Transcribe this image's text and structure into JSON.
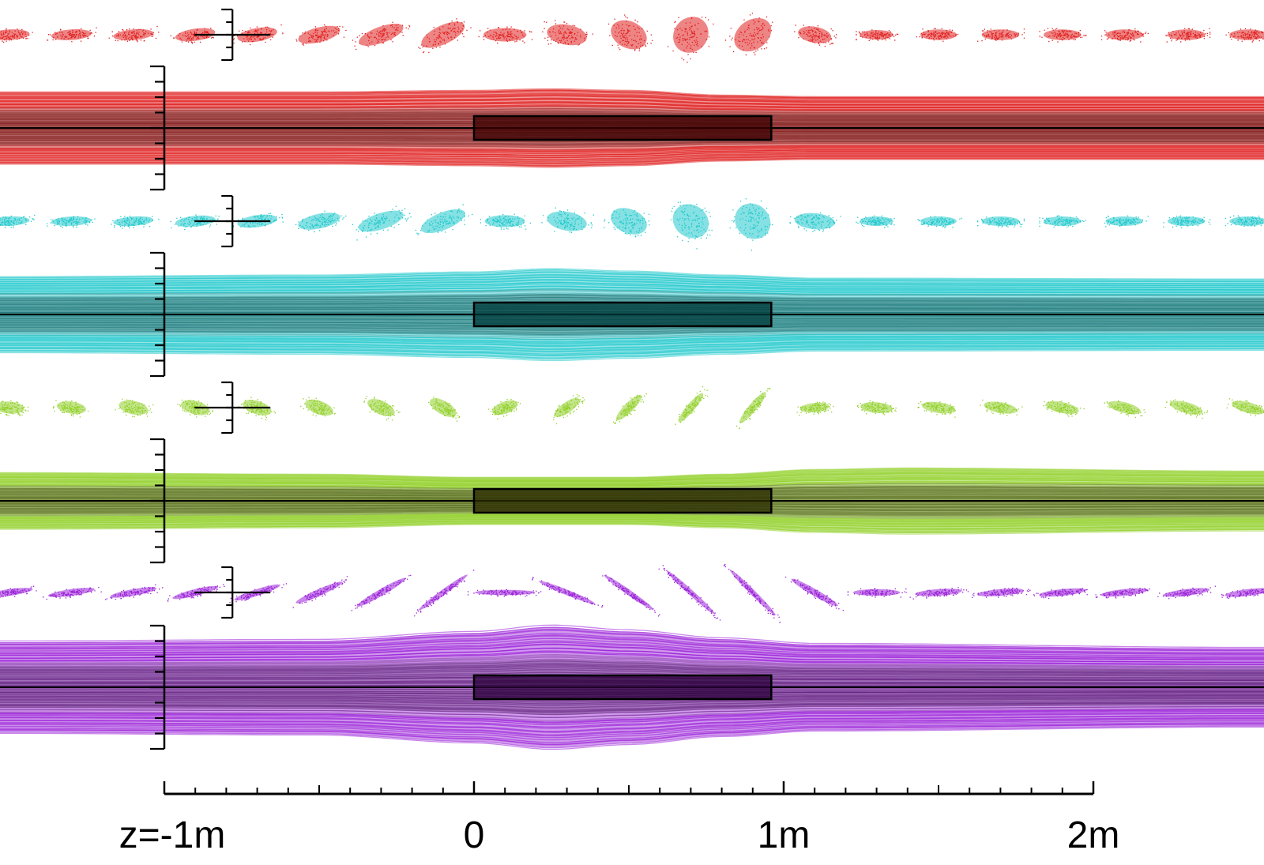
{
  "axis": {
    "tick_labels": [
      {
        "value": -1,
        "text": "z=-1m"
      },
      {
        "value": 0,
        "text": "0"
      },
      {
        "value": 1,
        "text": "1m"
      },
      {
        "value": 2,
        "text": "2m"
      }
    ],
    "range_m": [
      -1,
      2
    ],
    "minor_step_m": 0.1
  },
  "magnet": {
    "start_m": 0,
    "end_m": 0.96
  },
  "ellipse_positions_m": [
    -1.5,
    -1.3,
    -1.1,
    -0.9,
    -0.7,
    -0.5,
    -0.3,
    -0.1,
    0.1,
    0.3,
    0.5,
    0.7,
    0.9,
    1.1,
    1.3,
    1.5,
    1.7,
    1.9,
    2.1,
    2.3,
    2.5
  ],
  "rows": [
    {
      "name": "red",
      "color": "#e02020",
      "dark_color": "#3a0000",
      "ellipses": [
        {
          "rx": 30,
          "ry": 8,
          "angle": -3
        },
        {
          "rx": 30,
          "ry": 8,
          "angle": -4
        },
        {
          "rx": 30,
          "ry": 8,
          "angle": -5
        },
        {
          "rx": 30,
          "ry": 9,
          "angle": -8
        },
        {
          "rx": 30,
          "ry": 10,
          "angle": -10
        },
        {
          "rx": 32,
          "ry": 11,
          "angle": -14
        },
        {
          "rx": 35,
          "ry": 12,
          "angle": -20
        },
        {
          "rx": 35,
          "ry": 14,
          "angle": -25
        },
        {
          "rx": 32,
          "ry": 10,
          "angle": 0
        },
        {
          "rx": 30,
          "ry": 15,
          "angle": 10
        },
        {
          "rx": 28,
          "ry": 20,
          "angle": 25
        },
        {
          "rx": 25,
          "ry": 28,
          "angle": 40
        },
        {
          "rx": 22,
          "ry": 30,
          "angle": 55
        },
        {
          "rx": 25,
          "ry": 12,
          "angle": 10
        },
        {
          "rx": 25,
          "ry": 7,
          "angle": 0
        },
        {
          "rx": 27,
          "ry": 8,
          "angle": 0
        },
        {
          "rx": 28,
          "ry": 8,
          "angle": 0
        },
        {
          "rx": 28,
          "ry": 8,
          "angle": 0
        },
        {
          "rx": 28,
          "ry": 8,
          "angle": 0
        },
        {
          "rx": 28,
          "ry": 8,
          "angle": 0
        },
        {
          "rx": 28,
          "ry": 8,
          "angle": 0
        }
      ],
      "envelope": [
        [
          -1.5,
          46
        ],
        [
          -0.5,
          46
        ],
        [
          0,
          48
        ],
        [
          0.25,
          50
        ],
        [
          0.5,
          48
        ],
        [
          0.8,
          42
        ],
        [
          1.1,
          40
        ],
        [
          2.5,
          40
        ]
      ]
    },
    {
      "name": "cyan",
      "color": "#20c8cc",
      "dark_color": "#003a3a",
      "ellipses": [
        {
          "rx": 30,
          "ry": 7,
          "angle": -3
        },
        {
          "rx": 30,
          "ry": 7,
          "angle": -3
        },
        {
          "rx": 30,
          "ry": 7,
          "angle": -4
        },
        {
          "rx": 30,
          "ry": 8,
          "angle": -6
        },
        {
          "rx": 30,
          "ry": 9,
          "angle": -8
        },
        {
          "rx": 32,
          "ry": 11,
          "angle": -12
        },
        {
          "rx": 35,
          "ry": 12,
          "angle": -18
        },
        {
          "rx": 35,
          "ry": 13,
          "angle": -22
        },
        {
          "rx": 30,
          "ry": 9,
          "angle": 0
        },
        {
          "rx": 30,
          "ry": 14,
          "angle": 10
        },
        {
          "rx": 28,
          "ry": 18,
          "angle": 22
        },
        {
          "rx": 28,
          "ry": 24,
          "angle": 35
        },
        {
          "rx": 28,
          "ry": 25,
          "angle": 45
        },
        {
          "rx": 30,
          "ry": 12,
          "angle": 5
        },
        {
          "rx": 25,
          "ry": 7,
          "angle": 0
        },
        {
          "rx": 27,
          "ry": 7,
          "angle": 0
        },
        {
          "rx": 28,
          "ry": 7,
          "angle": 0
        },
        {
          "rx": 28,
          "ry": 7,
          "angle": 0
        },
        {
          "rx": 28,
          "ry": 7,
          "angle": 0
        },
        {
          "rx": 28,
          "ry": 7,
          "angle": 0
        },
        {
          "rx": 28,
          "ry": 7,
          "angle": 0
        }
      ],
      "envelope": [
        [
          -1.5,
          48
        ],
        [
          -0.5,
          50
        ],
        [
          0,
          54
        ],
        [
          0.25,
          58
        ],
        [
          0.5,
          55
        ],
        [
          0.8,
          50
        ],
        [
          1.1,
          46
        ],
        [
          2.5,
          45
        ]
      ]
    },
    {
      "name": "green",
      "color": "#92d02a",
      "dark_color": "#2a2a00",
      "ellipses": [
        {
          "rx": 22,
          "ry": 9,
          "angle": 5
        },
        {
          "rx": 22,
          "ry": 9,
          "angle": 8
        },
        {
          "rx": 22,
          "ry": 10,
          "angle": 12
        },
        {
          "rx": 22,
          "ry": 10,
          "angle": 15
        },
        {
          "rx": 22,
          "ry": 10,
          "angle": 18
        },
        {
          "rx": 22,
          "ry": 10,
          "angle": 20
        },
        {
          "rx": 22,
          "ry": 10,
          "angle": 25
        },
        {
          "rx": 22,
          "ry": 10,
          "angle": 30
        },
        {
          "rx": 20,
          "ry": 9,
          "angle": -20
        },
        {
          "rx": 22,
          "ry": 8,
          "angle": -35
        },
        {
          "rx": 26,
          "ry": 7,
          "angle": -45
        },
        {
          "rx": 28,
          "ry": 6,
          "angle": -50
        },
        {
          "rx": 30,
          "ry": 6,
          "angle": -50
        },
        {
          "rx": 22,
          "ry": 7,
          "angle": -5
        },
        {
          "rx": 24,
          "ry": 8,
          "angle": 5
        },
        {
          "rx": 25,
          "ry": 8,
          "angle": 8
        },
        {
          "rx": 25,
          "ry": 8,
          "angle": 10
        },
        {
          "rx": 25,
          "ry": 8,
          "angle": 12
        },
        {
          "rx": 25,
          "ry": 8,
          "angle": 14
        },
        {
          "rx": 25,
          "ry": 8,
          "angle": 15
        },
        {
          "rx": 25,
          "ry": 8,
          "angle": 15
        }
      ],
      "envelope": [
        [
          -1.5,
          36
        ],
        [
          -0.5,
          34
        ],
        [
          0,
          30
        ],
        [
          0.5,
          30
        ],
        [
          0.8,
          34
        ],
        [
          1.1,
          40
        ],
        [
          1.4,
          42
        ],
        [
          2.5,
          38
        ]
      ]
    },
    {
      "name": "purple",
      "color": "#9a20d8",
      "dark_color": "#2a0038",
      "ellipses": [
        {
          "rx": 35,
          "ry": 5,
          "angle": -8
        },
        {
          "rx": 35,
          "ry": 5,
          "angle": -8
        },
        {
          "rx": 35,
          "ry": 5,
          "angle": -10
        },
        {
          "rx": 35,
          "ry": 5,
          "angle": -14
        },
        {
          "rx": 36,
          "ry": 5,
          "angle": -18
        },
        {
          "rx": 38,
          "ry": 5,
          "angle": -24
        },
        {
          "rx": 42,
          "ry": 5,
          "angle": -30
        },
        {
          "rx": 45,
          "ry": 4,
          "angle": -36
        },
        {
          "rx": 45,
          "ry": 4,
          "angle": 0
        },
        {
          "rx": 45,
          "ry": 4,
          "angle": 22
        },
        {
          "rx": 45,
          "ry": 4,
          "angle": 35
        },
        {
          "rx": 48,
          "ry": 4,
          "angle": 42
        },
        {
          "rx": 48,
          "ry": 4,
          "angle": 45
        },
        {
          "rx": 40,
          "ry": 5,
          "angle": 30
        },
        {
          "rx": 35,
          "ry": 5,
          "angle": 0
        },
        {
          "rx": 35,
          "ry": 5,
          "angle": -4
        },
        {
          "rx": 35,
          "ry": 5,
          "angle": -5
        },
        {
          "rx": 35,
          "ry": 5,
          "angle": -6
        },
        {
          "rx": 35,
          "ry": 5,
          "angle": -6
        },
        {
          "rx": 35,
          "ry": 5,
          "angle": -7
        },
        {
          "rx": 35,
          "ry": 5,
          "angle": -7
        }
      ],
      "envelope": [
        [
          -1.5,
          58
        ],
        [
          -0.5,
          60
        ],
        [
          0,
          70
        ],
        [
          0.25,
          78
        ],
        [
          0.5,
          72
        ],
        [
          0.8,
          62
        ],
        [
          1.1,
          55
        ],
        [
          2.5,
          50
        ]
      ]
    }
  ]
}
